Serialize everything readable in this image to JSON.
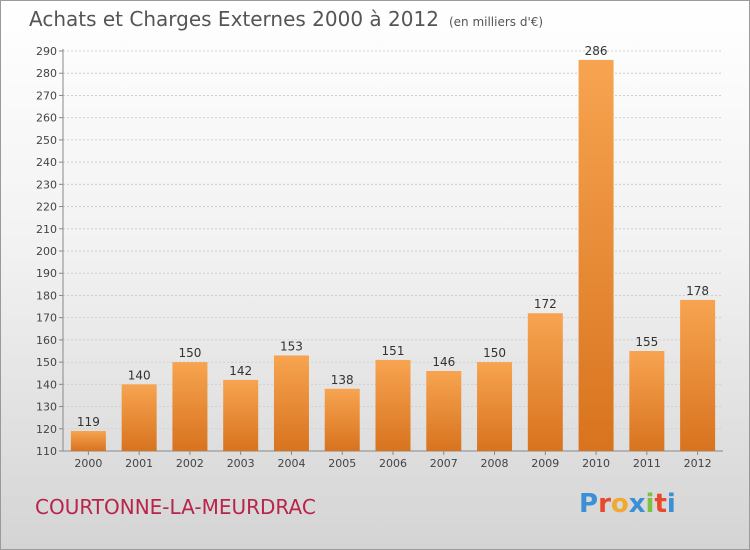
{
  "header": {
    "title": "Achats et Charges Externes 2000 à 2012",
    "unit": "(en milliers d'€)"
  },
  "footer": {
    "commune": "COURTONNE-LA-MEURDRAC",
    "logo_text": "Proxiti",
    "logo_letter_colors": [
      "#3a8fd6",
      "#e8482c",
      "#f2a92f",
      "#3a8fd6",
      "#7cc242",
      "#e8482c",
      "#3a8fd6"
    ]
  },
  "colors": {
    "bar_light": "#f7a450",
    "bar_dark": "#d8731f",
    "commune_text": "#b8244a"
  },
  "chart_data": {
    "type": "bar",
    "title": "Achats et Charges Externes 2000 à 2012",
    "subtitle": "(en milliers d'€)",
    "categories": [
      "2000",
      "2001",
      "2002",
      "2003",
      "2004",
      "2005",
      "2006",
      "2007",
      "2008",
      "2009",
      "2010",
      "2011",
      "2012"
    ],
    "values": [
      119,
      140,
      150,
      142,
      153,
      138,
      151,
      146,
      150,
      172,
      286,
      155,
      178
    ],
    "ylim": [
      110,
      290
    ],
    "yticks": [
      110,
      120,
      130,
      140,
      150,
      160,
      170,
      180,
      190,
      200,
      210,
      220,
      230,
      240,
      250,
      260,
      270,
      280,
      290
    ],
    "grid": true,
    "data_labels": true
  }
}
